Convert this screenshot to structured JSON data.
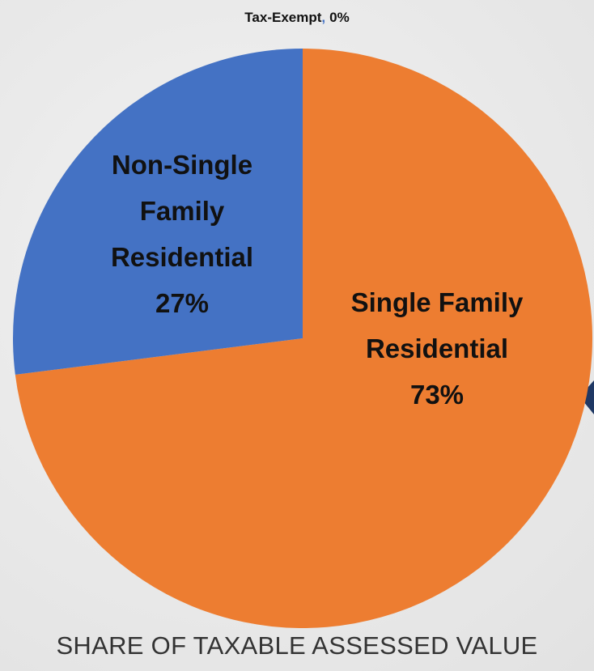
{
  "chart_data": {
    "type": "pie",
    "title": "SHARE OF TAXABLE ASSESSED VALUE",
    "categories": [
      "Single Family Residential",
      "Non-Single Family Residential",
      "Tax-Exempt"
    ],
    "values": [
      73,
      27,
      0
    ],
    "value_labels": [
      "73%",
      "27%",
      "0%"
    ],
    "separator": ",",
    "colors": [
      "#ed7d31",
      "#4472c4",
      "#a5a5a5"
    ]
  }
}
